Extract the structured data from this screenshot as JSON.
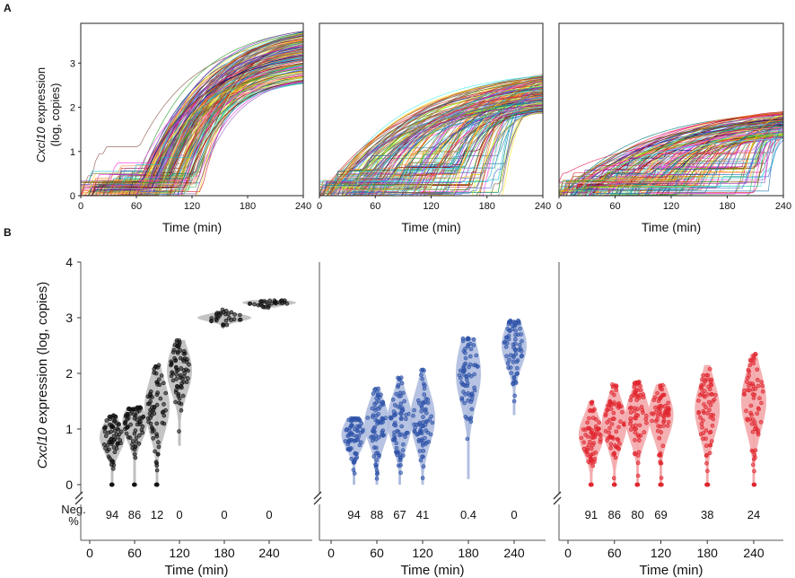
{
  "figure": {
    "panel_a_letter": "A",
    "panel_b_letter": "B",
    "gene": "Cxcl10",
    "ylabel_suffix": " expression",
    "ylabel_units": "(log, copies)",
    "neg_label_line1": "Neg.",
    "neg_label_line2": "%"
  },
  "colors": {
    "black": "#111111",
    "blue": "#2d52a8",
    "red": "#e0252e",
    "violin_black": "#b9b9b9",
    "violin_blue": "#aab9dd",
    "violin_red": "#f2a3a6"
  },
  "chart_data": [
    {
      "type": "line",
      "panel": "A-1",
      "description_series": "single-cell trajectories (many colored lines)",
      "xlabel": "Time (min)",
      "ylabel": "Cxcl10 expression (log, copies)",
      "xlim": [
        0,
        240
      ],
      "ylim": [
        0,
        3.9
      ],
      "xticks": [
        0,
        60,
        120,
        180,
        240
      ],
      "yticks": [
        0,
        1,
        2,
        3
      ],
      "trend": {
        "early_plateau": 1.1,
        "onset_min": 60,
        "onset_max": 130,
        "final": 3.55
      }
    },
    {
      "type": "line",
      "panel": "A-2",
      "xlabel": "Time (min)",
      "ylabel": "",
      "xlim": [
        0,
        240
      ],
      "ylim": [
        0,
        3.9
      ],
      "xticks": [
        0,
        60,
        120,
        180,
        240
      ],
      "trend": {
        "early_plateau": 1.2,
        "onset_min": 0,
        "onset_max": 200,
        "final": 2.6
      }
    },
    {
      "type": "line",
      "panel": "A-3",
      "xlabel": "Time (min)",
      "ylabel": "",
      "xlim": [
        0,
        240
      ],
      "ylim": [
        0,
        3.9
      ],
      "xticks": [
        0,
        60,
        120,
        180,
        240
      ],
      "trend": {
        "early_plateau": 1.3,
        "onset_min": 0,
        "onset_max": 230,
        "final": 1.8
      }
    },
    {
      "type": "scatter",
      "panel": "B-1",
      "subtype": "violin-scatter",
      "color": "black",
      "xlabel": "Time (min)",
      "ylabel": "Cxcl10 expression (log, copies)",
      "xlim": [
        0,
        240
      ],
      "ylim": [
        0,
        4
      ],
      "xticks": [
        0,
        60,
        120,
        180,
        240
      ],
      "yticks": [
        0,
        1,
        2,
        3,
        4
      ],
      "groups": [
        {
          "time": 30,
          "median": 0.85,
          "min": 0,
          "max": 1.25
        },
        {
          "time": 60,
          "median": 1.1,
          "min": 0,
          "max": 1.4
        },
        {
          "time": 90,
          "median": 1.4,
          "min": 0,
          "max": 2.15
        },
        {
          "time": 120,
          "median": 2.05,
          "min": 0.7,
          "max": 2.6
        },
        {
          "time": 180,
          "median": 3.0,
          "min": 2.85,
          "max": 3.15
        },
        {
          "time": 240,
          "median": 3.27,
          "min": 3.18,
          "max": 3.32
        }
      ],
      "neg_percent": [
        "94",
        "86",
        "12",
        "0",
        "0",
        "0"
      ]
    },
    {
      "type": "scatter",
      "panel": "B-2",
      "subtype": "violin-scatter",
      "color": "blue",
      "xlabel": "Time (min)",
      "ylabel": "",
      "xlim": [
        0,
        240
      ],
      "ylim": [
        0,
        4
      ],
      "xticks": [
        0,
        60,
        120,
        180,
        240
      ],
      "groups": [
        {
          "time": 30,
          "median": 0.9,
          "min": 0,
          "max": 1.2
        },
        {
          "time": 60,
          "median": 1.1,
          "min": 0,
          "max": 1.75
        },
        {
          "time": 90,
          "median": 1.15,
          "min": 0,
          "max": 1.95
        },
        {
          "time": 120,
          "median": 1.2,
          "min": 0,
          "max": 2.1
        },
        {
          "time": 180,
          "median": 2.0,
          "min": 0.1,
          "max": 2.65
        },
        {
          "time": 240,
          "median": 2.5,
          "min": 1.25,
          "max": 2.95
        }
      ],
      "neg_percent": [
        "94",
        "88",
        "67",
        "41",
        "0.4",
        "0"
      ]
    },
    {
      "type": "scatter",
      "panel": "B-3",
      "subtype": "violin-scatter",
      "color": "red",
      "xlabel": "Time (min)",
      "ylabel": "",
      "xlim": [
        0,
        240
      ],
      "ylim": [
        0,
        4
      ],
      "xticks": [
        0,
        60,
        120,
        180,
        240
      ],
      "groups": [
        {
          "time": 30,
          "median": 0.9,
          "min": 0,
          "max": 1.5
        },
        {
          "time": 60,
          "median": 1.1,
          "min": 0,
          "max": 1.8
        },
        {
          "time": 90,
          "median": 1.2,
          "min": 0,
          "max": 1.85
        },
        {
          "time": 120,
          "median": 1.25,
          "min": 0,
          "max": 1.8
        },
        {
          "time": 180,
          "median": 1.35,
          "min": 0,
          "max": 2.15
        },
        {
          "time": 240,
          "median": 1.5,
          "min": 0,
          "max": 2.35
        }
      ],
      "neg_percent": [
        "91",
        "86",
        "80",
        "69",
        "38",
        "24"
      ]
    }
  ]
}
